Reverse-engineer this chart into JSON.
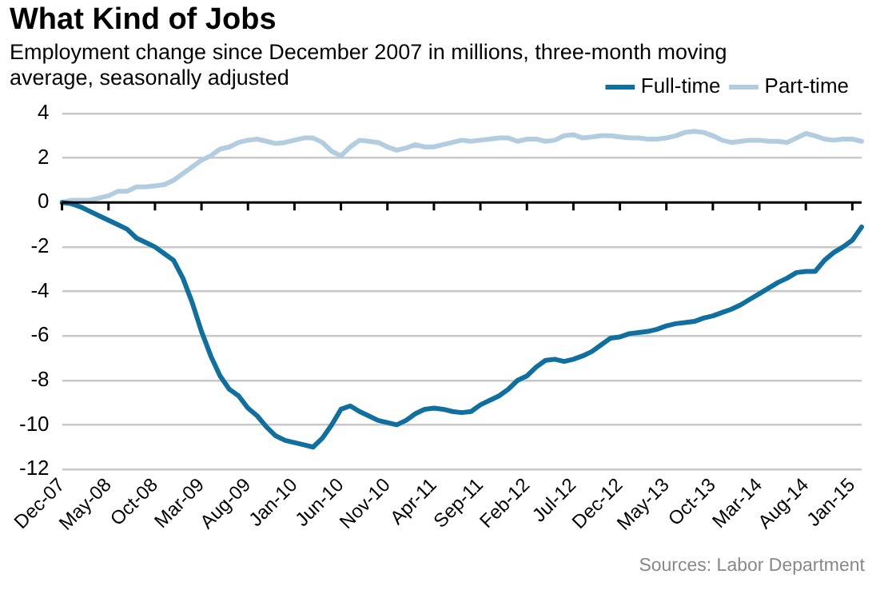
{
  "chart_data": {
    "type": "line",
    "title": "What Kind of Jobs",
    "subtitle": "Employment change since December 2007 in millions, three-month moving average, seasonally adjusted",
    "categories": [
      "Dec-07",
      null,
      null,
      null,
      null,
      "May-08",
      null,
      null,
      null,
      null,
      "Oct-08",
      null,
      null,
      null,
      null,
      "Mar-09",
      null,
      null,
      null,
      null,
      "Aug-09",
      null,
      null,
      null,
      null,
      "Jan-10",
      null,
      null,
      null,
      null,
      "Jun-10",
      null,
      null,
      null,
      null,
      "Nov-10",
      null,
      null,
      null,
      null,
      "Apr-11",
      null,
      null,
      null,
      null,
      "Sep-11",
      null,
      null,
      null,
      null,
      "Feb-12",
      null,
      null,
      null,
      null,
      "Jul-12",
      null,
      null,
      null,
      null,
      "Dec-12",
      null,
      null,
      null,
      null,
      "May-13",
      null,
      null,
      null,
      null,
      "Oct-13",
      null,
      null,
      null,
      null,
      "Mar-14",
      null,
      null,
      null,
      null,
      "Aug-14",
      null,
      null,
      null,
      null,
      "Jan-15",
      null
    ],
    "series": [
      {
        "name": "Full-time",
        "color": "#0f6f9e",
        "values": [
          0,
          -0.05,
          -0.2,
          -0.4,
          -0.6,
          -0.8,
          -1.0,
          -1.2,
          -1.6,
          -1.8,
          -2.0,
          -2.3,
          -2.6,
          -3.4,
          -4.5,
          -5.8,
          -6.9,
          -7.8,
          -8.4,
          -8.7,
          -9.25,
          -9.6,
          -10.1,
          -10.5,
          -10.7,
          -10.8,
          -10.9,
          -11.0,
          -10.6,
          -10.0,
          -9.3,
          -9.15,
          -9.4,
          -9.6,
          -9.8,
          -9.9,
          -10.0,
          -9.8,
          -9.5,
          -9.3,
          -9.25,
          -9.3,
          -9.4,
          -9.45,
          -9.4,
          -9.1,
          -8.9,
          -8.7,
          -8.4,
          -8.0,
          -7.8,
          -7.4,
          -7.1,
          -7.05,
          -7.15,
          -7.05,
          -6.9,
          -6.7,
          -6.4,
          -6.1,
          -6.05,
          -5.9,
          -5.85,
          -5.8,
          -5.7,
          -5.55,
          -5.45,
          -5.4,
          -5.35,
          -5.2,
          -5.1,
          -4.95,
          -4.8,
          -4.6,
          -4.35,
          -4.1,
          -3.85,
          -3.6,
          -3.4,
          -3.15,
          -3.1,
          -3.1,
          -2.6,
          -2.25,
          -2.0,
          -1.7,
          -1.1
        ]
      },
      {
        "name": "Part-time",
        "color": "#b3cde0",
        "values": [
          0,
          0.1,
          0.1,
          0.1,
          0.2,
          0.3,
          0.5,
          0.5,
          0.7,
          0.7,
          0.75,
          0.8,
          1.0,
          1.3,
          1.6,
          1.9,
          2.1,
          2.4,
          2.5,
          2.7,
          2.8,
          2.85,
          2.75,
          2.65,
          2.7,
          2.8,
          2.9,
          2.9,
          2.7,
          2.3,
          2.1,
          2.5,
          2.8,
          2.75,
          2.7,
          2.5,
          2.35,
          2.45,
          2.6,
          2.5,
          2.5,
          2.6,
          2.7,
          2.8,
          2.75,
          2.8,
          2.85,
          2.9,
          2.9,
          2.75,
          2.85,
          2.85,
          2.75,
          2.8,
          3.0,
          3.05,
          2.9,
          2.95,
          3.0,
          3.0,
          2.95,
          2.9,
          2.9,
          2.85,
          2.85,
          2.9,
          3.0,
          3.15,
          3.2,
          3.15,
          3.0,
          2.8,
          2.7,
          2.75,
          2.8,
          2.8,
          2.75,
          2.75,
          2.7,
          2.9,
          3.1,
          3.0,
          2.85,
          2.8,
          2.85,
          2.85,
          2.75
        ]
      }
    ],
    "ylim": [
      -12,
      4
    ],
    "yticks": [
      -12,
      -10,
      -8,
      -6,
      -4,
      -2,
      0,
      2,
      4
    ],
    "grid": "y",
    "legend": "top",
    "marker": "none",
    "line_style": "solid",
    "annotations": [
      "Sources: Labor Department"
    ]
  }
}
